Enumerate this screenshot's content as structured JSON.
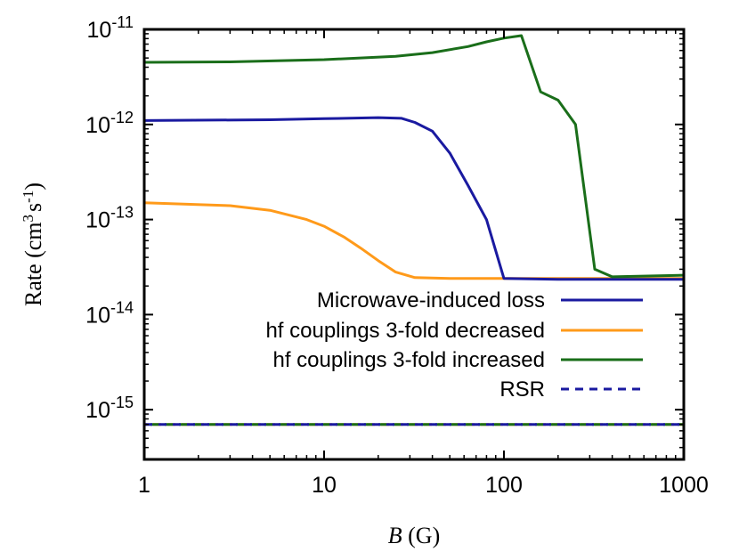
{
  "chart_data": {
    "type": "line",
    "xlabel": {
      "italic": "B",
      "rest": " (G)"
    },
    "ylabel": {
      "main": "Rate (cm",
      "sup1": "3",
      "mid": "s",
      "sup2": "-1",
      "end": ")"
    },
    "x_scale": "log",
    "y_scale": "log",
    "xlim": [
      1,
      1000
    ],
    "ylim": [
      3e-16,
      1e-11
    ],
    "x_ticks": [
      {
        "value": 1,
        "label": "1"
      },
      {
        "value": 10,
        "label": "10"
      },
      {
        "value": 100,
        "label": "100"
      },
      {
        "value": 1000,
        "label": "1000"
      }
    ],
    "y_ticks": [
      {
        "value": 1e-15,
        "base": "10",
        "exp": "-15"
      },
      {
        "value": 1e-14,
        "base": "10",
        "exp": "-14"
      },
      {
        "value": 1e-13,
        "base": "10",
        "exp": "-13"
      },
      {
        "value": 1e-12,
        "base": "10",
        "exp": "-12"
      },
      {
        "value": 1e-11,
        "base": "10",
        "exp": "-11"
      }
    ],
    "grid": false,
    "legend_position": "bottom-right inside",
    "series": [
      {
        "name": "Microwave-induced loss",
        "color": "#1a1aa0",
        "dash": "solid",
        "points": [
          [
            1,
            1.1e-12
          ],
          [
            5,
            1.12e-12
          ],
          [
            10,
            1.15e-12
          ],
          [
            20,
            1.18e-12
          ],
          [
            27,
            1.16e-12
          ],
          [
            32,
            1.05e-12
          ],
          [
            40,
            8.5e-13
          ],
          [
            50,
            5e-13
          ],
          [
            63,
            2.3e-13
          ],
          [
            80,
            1e-13
          ],
          [
            100,
            2.4e-14
          ],
          [
            200,
            2.35e-14
          ],
          [
            1000,
            2.35e-14
          ]
        ]
      },
      {
        "name": "hf couplings 3-fold decreased",
        "color": "#ff9a1a",
        "dash": "solid",
        "points": [
          [
            1,
            1.5e-13
          ],
          [
            3,
            1.4e-13
          ],
          [
            5,
            1.25e-13
          ],
          [
            8,
            1e-13
          ],
          [
            10,
            8.5e-14
          ],
          [
            13,
            6.5e-14
          ],
          [
            16,
            5e-14
          ],
          [
            20,
            3.7e-14
          ],
          [
            25,
            2.8e-14
          ],
          [
            32,
            2.45e-14
          ],
          [
            50,
            2.4e-14
          ],
          [
            100,
            2.4e-14
          ],
          [
            1000,
            2.4e-14
          ]
        ]
      },
      {
        "name": "hf couplings 3-fold increased",
        "color": "#1a6e1a",
        "dash": "solid",
        "points": [
          [
            1,
            4.5e-12
          ],
          [
            3,
            4.55e-12
          ],
          [
            10,
            4.8e-12
          ],
          [
            25,
            5.2e-12
          ],
          [
            40,
            5.7e-12
          ],
          [
            63,
            6.6e-12
          ],
          [
            80,
            7.4e-12
          ],
          [
            100,
            8.1e-12
          ],
          [
            125,
            8.6e-12
          ],
          [
            160,
            2.2e-12
          ],
          [
            200,
            1.8e-12
          ],
          [
            250,
            1e-12
          ],
          [
            320,
            3e-14
          ],
          [
            400,
            2.5e-14
          ],
          [
            1000,
            2.6e-14
          ]
        ]
      },
      {
        "name": "RSR",
        "color": "#1a1aa0",
        "dash": "dashed",
        "points": [
          [
            1,
            7e-16
          ],
          [
            1000,
            7e-16
          ]
        ]
      }
    ],
    "overlay_dashed": [
      {
        "color": "#ff9a1a",
        "points": [
          [
            1,
            7e-16
          ],
          [
            1000,
            7e-16
          ]
        ]
      },
      {
        "color": "#1a6e1a",
        "points": [
          [
            1,
            7e-16
          ],
          [
            1000,
            7e-16
          ]
        ]
      }
    ]
  }
}
